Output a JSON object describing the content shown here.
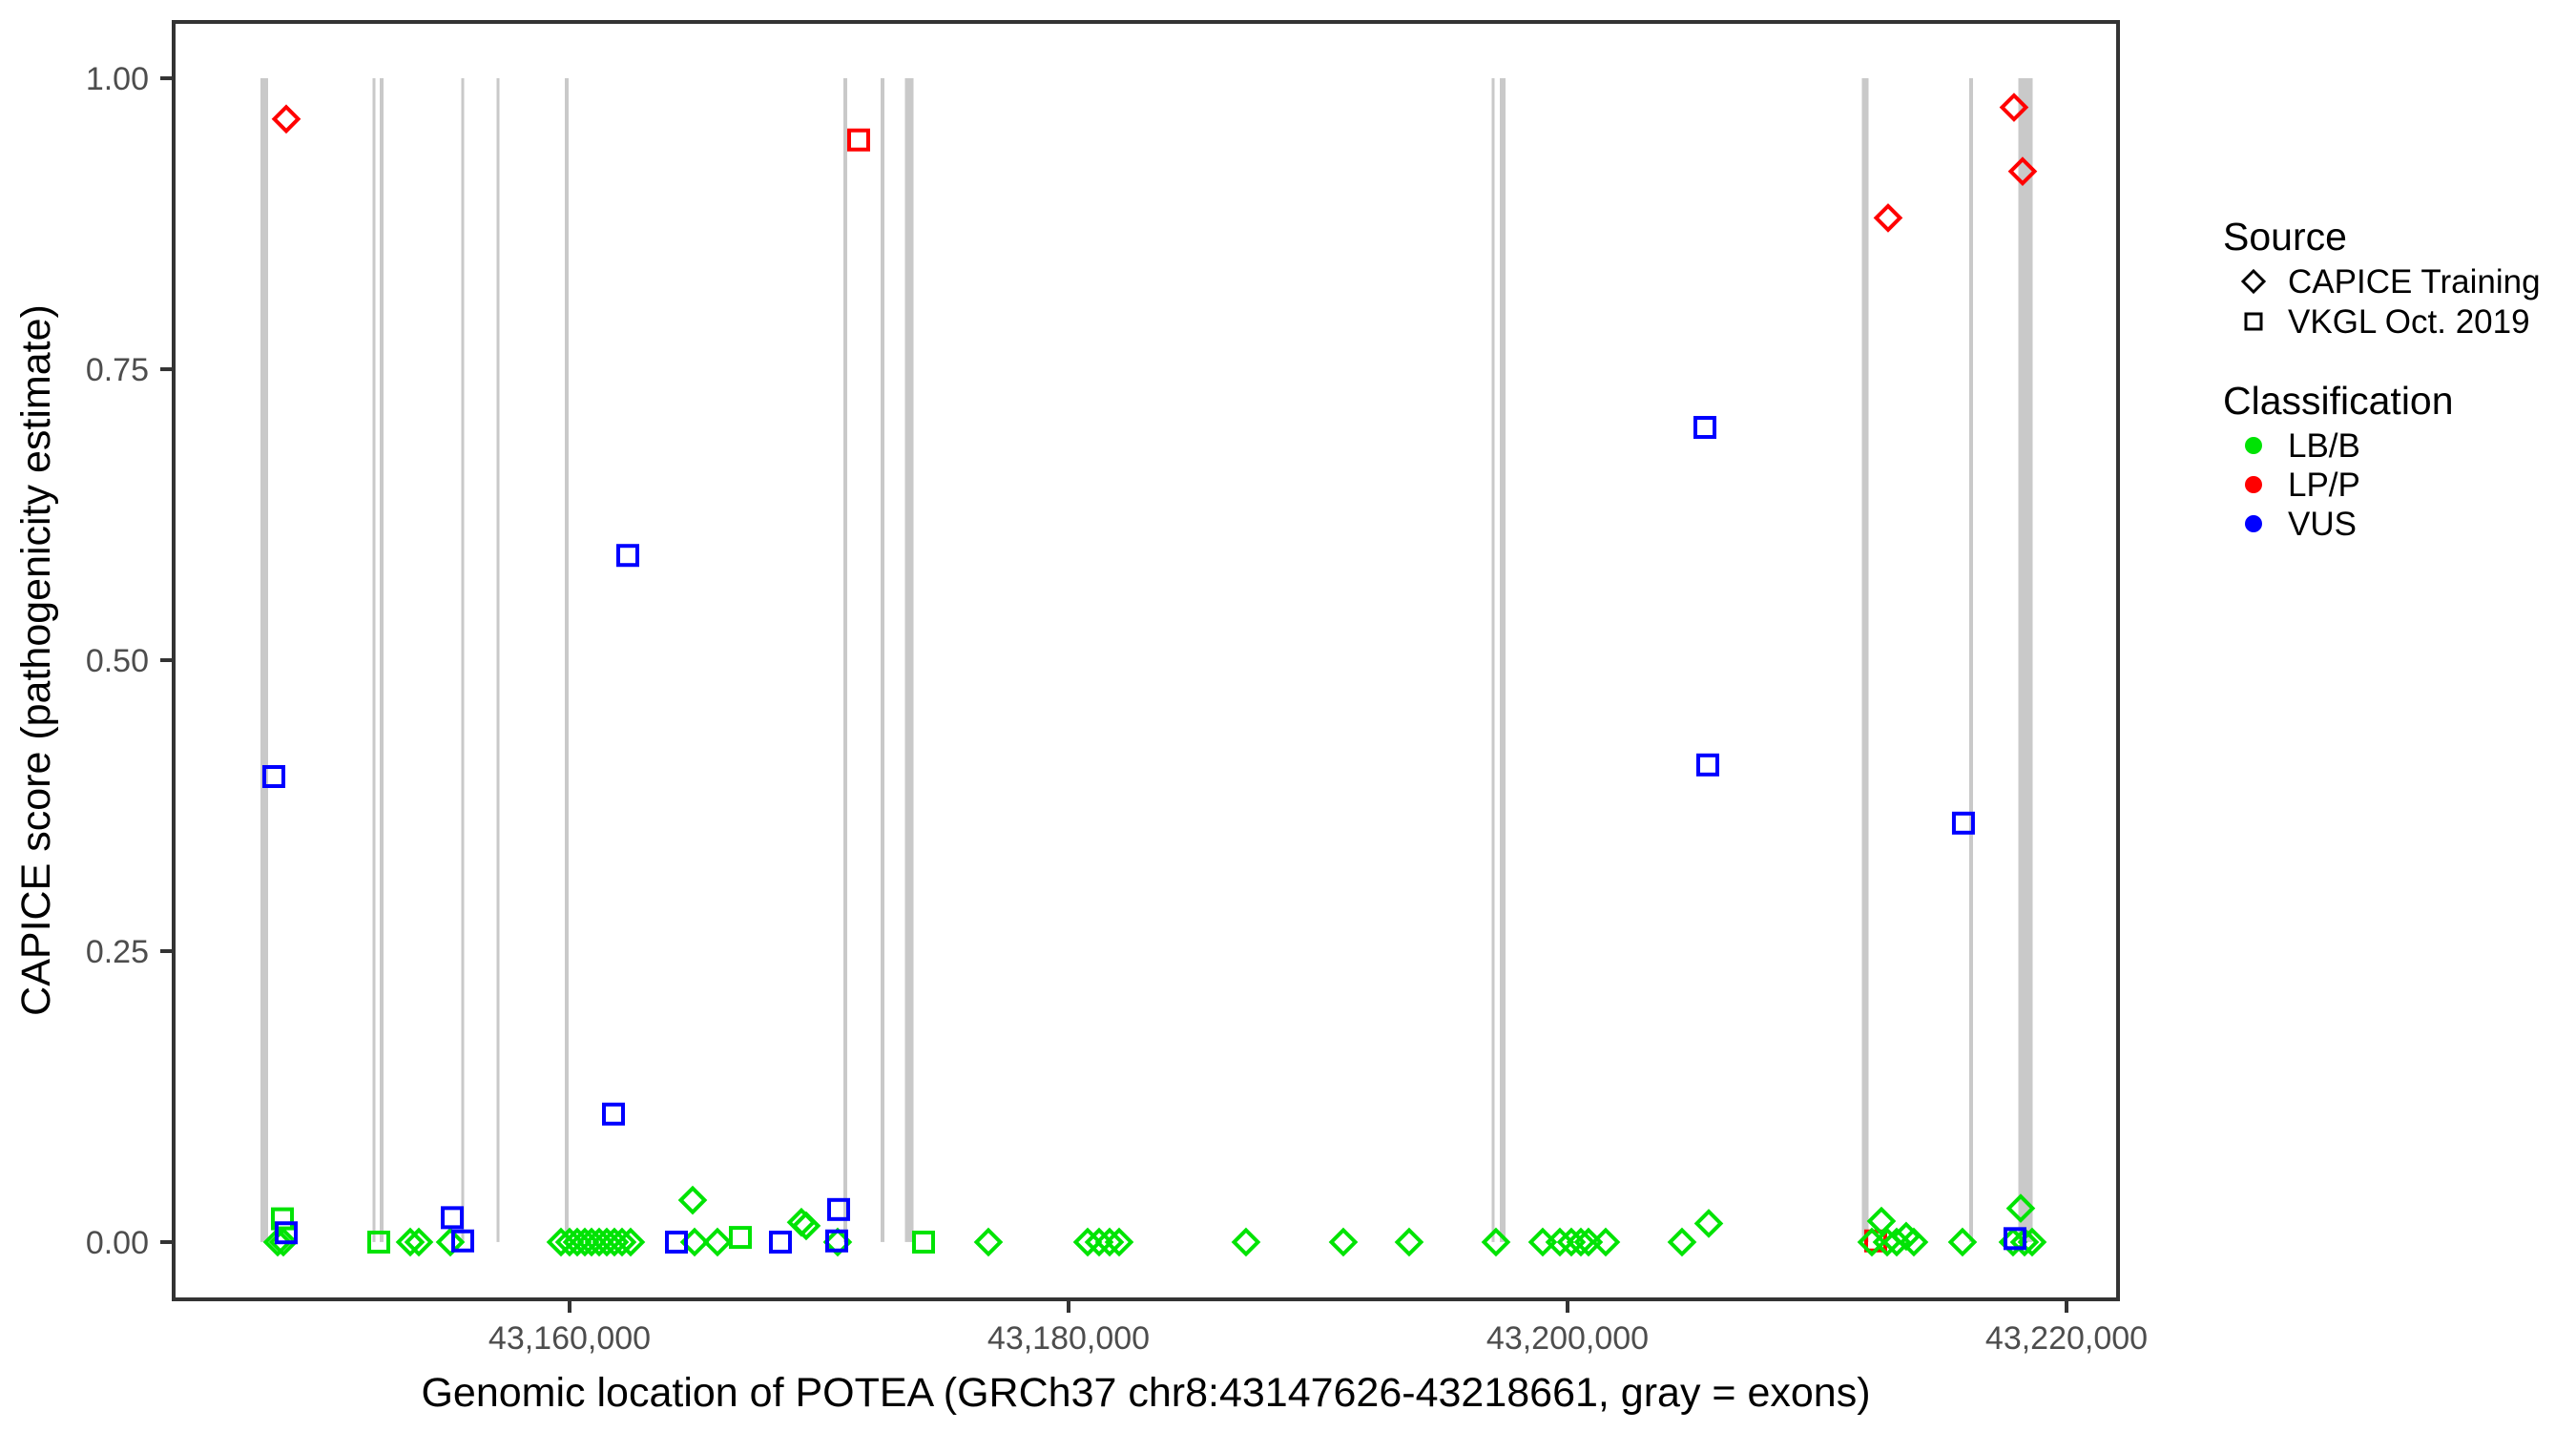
{
  "axes": {
    "x": {
      "label": "Genomic location of POTEA (GRCh37 chr8:43147626-43218661, gray = exons)",
      "ticks": [
        {
          "v": 43160000,
          "label": "43,160,000"
        },
        {
          "v": 43180000,
          "label": "43,180,000"
        },
        {
          "v": 43200000,
          "label": "43,200,000"
        },
        {
          "v": 43220000,
          "label": "43,220,000"
        }
      ]
    },
    "y": {
      "label": "CAPICE score (pathogenicity estimate)",
      "ticks": [
        {
          "v": 0.0,
          "label": "0.00"
        },
        {
          "v": 0.25,
          "label": "0.25"
        },
        {
          "v": 0.5,
          "label": "0.50"
        },
        {
          "v": 0.75,
          "label": "0.75"
        },
        {
          "v": 1.0,
          "label": "1.00"
        }
      ]
    }
  },
  "legend": {
    "source": {
      "title": "Source",
      "items": [
        {
          "label": "CAPICE Training",
          "shape": "diamond"
        },
        {
          "label": "VKGL Oct. 2019",
          "shape": "square"
        }
      ]
    },
    "classification": {
      "title": "Classification",
      "items": [
        {
          "label": "LB/B",
          "color": "#00E304"
        },
        {
          "label": "LP/P",
          "color": "#FF0000"
        },
        {
          "label": "VUS",
          "color": "#0000FF"
        }
      ]
    }
  },
  "style": {
    "exon_color": "#C9C9C9",
    "panel_border_color": "#333333",
    "tick_color": "#333333",
    "class_colors": {
      "LB": "#00E304",
      "LP": "#FF0000",
      "VUS": "#0000FF"
    }
  },
  "chart_data": {
    "type": "scatter",
    "title": "",
    "xlabel": "Genomic location of POTEA (GRCh37 chr8:43147626-43218661, gray = exons)",
    "ylabel": "CAPICE score (pathogenicity estimate)",
    "x_range": [
      43144130,
      43222065
    ],
    "y_range": [
      -0.0492,
      1.0484
    ],
    "grid": false,
    "legend_position": "right",
    "exons_bp": [
      [
        43147764,
        306
      ],
      [
        43152162,
        115
      ],
      [
        43152468,
        153
      ],
      [
        43155718,
        115
      ],
      [
        43157133,
        115
      ],
      [
        43159886,
        153
      ],
      [
        43171052,
        153
      ],
      [
        43172543,
        153
      ],
      [
        43173614,
        344
      ],
      [
        43197018,
        115
      ],
      [
        43197400,
        229
      ],
      [
        43211930,
        268
      ],
      [
        43216175,
        153
      ],
      [
        43218355,
        574
      ]
    ],
    "point_encoding": "[position_bp, capice_score, source T=CAPICE Training (diamond) | V=VKGL Oct. 2019 (square), classification LB=LB/B | LP=LP/P | VUS=VUS]",
    "points": [
      [
        43148643,
        0.965,
        "T",
        "LP"
      ],
      [
        43171587,
        0.947,
        "V",
        "LP"
      ],
      [
        43212848,
        0.88,
        "T",
        "LP"
      ],
      [
        43217895,
        0.975,
        "T",
        "LP"
      ],
      [
        43218240,
        0.92,
        "T",
        "LP"
      ],
      [
        43212351,
        0.001,
        "V",
        "LP"
      ],
      [
        43148299,
        0.0,
        "T",
        "LB"
      ],
      [
        43148490,
        0.02,
        "V",
        "LB"
      ],
      [
        43148528,
        0.0,
        "T",
        "LB"
      ],
      [
        43152352,
        0.0,
        "V",
        "LB"
      ],
      [
        43153614,
        0.0,
        "T",
        "LB"
      ],
      [
        43153958,
        0.0,
        "T",
        "LB"
      ],
      [
        43155220,
        0.0,
        "T",
        "LB"
      ],
      [
        43159656,
        0.0,
        "T",
        "LB"
      ],
      [
        43160000,
        0.0,
        "T",
        "LB"
      ],
      [
        43160306,
        0.0,
        "T",
        "LB"
      ],
      [
        43160612,
        0.0,
        "T",
        "LB"
      ],
      [
        43160880,
        0.0,
        "T",
        "LB"
      ],
      [
        43161186,
        0.0,
        "T",
        "LB"
      ],
      [
        43161491,
        0.0,
        "T",
        "LB"
      ],
      [
        43161797,
        0.0,
        "T",
        "LB"
      ],
      [
        43162103,
        0.0,
        "T",
        "LB"
      ],
      [
        43162447,
        0.0,
        "T",
        "LB"
      ],
      [
        43164933,
        0.036,
        "T",
        "LB"
      ],
      [
        43165010,
        0.0,
        "T",
        "LB"
      ],
      [
        43165927,
        0.0,
        "T",
        "LB"
      ],
      [
        43166845,
        0.004,
        "V",
        "LB"
      ],
      [
        43169292,
        0.017,
        "T",
        "LB"
      ],
      [
        43169483,
        0.014,
        "T",
        "LB"
      ],
      [
        43170745,
        0.0,
        "T",
        "LB"
      ],
      [
        43174187,
        0.0,
        "V",
        "LB"
      ],
      [
        43176787,
        0.0,
        "T",
        "LB"
      ],
      [
        43180765,
        0.0,
        "T",
        "LB"
      ],
      [
        43181224,
        0.0,
        "T",
        "LB"
      ],
      [
        43181645,
        0.0,
        "T",
        "LB"
      ],
      [
        43182027,
        0.0,
        "T",
        "LB"
      ],
      [
        43187112,
        0.0,
        "T",
        "LB"
      ],
      [
        43191013,
        0.0,
        "T",
        "LB"
      ],
      [
        43193651,
        0.0,
        "T",
        "LB"
      ],
      [
        43197131,
        0.0,
        "T",
        "LB"
      ],
      [
        43199005,
        0.0,
        "T",
        "LB"
      ],
      [
        43199693,
        0.0,
        "T",
        "LB"
      ],
      [
        43200152,
        0.0,
        "T",
        "LB"
      ],
      [
        43200535,
        0.0,
        "T",
        "LB"
      ],
      [
        43200840,
        0.0,
        "T",
        "LB"
      ],
      [
        43201529,
        0.0,
        "T",
        "LB"
      ],
      [
        43204588,
        0.0,
        "T",
        "LB"
      ],
      [
        43205659,
        0.016,
        "T",
        "LB"
      ],
      [
        43212198,
        0.0,
        "T",
        "LB"
      ],
      [
        43212580,
        0.018,
        "T",
        "LB"
      ],
      [
        43212810,
        0.0,
        "T",
        "LB"
      ],
      [
        43213192,
        0.0,
        "T",
        "LB"
      ],
      [
        43213574,
        0.005,
        "T",
        "LB"
      ],
      [
        43213880,
        0.0,
        "T",
        "LB"
      ],
      [
        43215830,
        0.0,
        "T",
        "LB"
      ],
      [
        43217857,
        0.0,
        "T",
        "LB"
      ],
      [
        43218163,
        0.029,
        "T",
        "LB"
      ],
      [
        43218316,
        0.0,
        "T",
        "LB"
      ],
      [
        43218622,
        0.0,
        "T",
        "LB"
      ],
      [
        43148146,
        0.4,
        "V",
        "VUS"
      ],
      [
        43148643,
        0.008,
        "V",
        "VUS"
      ],
      [
        43155297,
        0.021,
        "V",
        "VUS"
      ],
      [
        43155717,
        0.001,
        "V",
        "VUS"
      ],
      [
        43161759,
        0.11,
        "V",
        "VUS"
      ],
      [
        43162333,
        0.59,
        "V",
        "VUS"
      ],
      [
        43164283,
        0.0,
        "V",
        "VUS"
      ],
      [
        43168451,
        0.0,
        "V",
        "VUS"
      ],
      [
        43170707,
        0.001,
        "V",
        "VUS"
      ],
      [
        43170784,
        0.028,
        "V",
        "VUS"
      ],
      [
        43205506,
        0.7,
        "V",
        "VUS"
      ],
      [
        43205620,
        0.41,
        "V",
        "VUS"
      ],
      [
        43215868,
        0.36,
        "V",
        "VUS"
      ],
      [
        43217933,
        0.003,
        "V",
        "VUS"
      ]
    ]
  }
}
